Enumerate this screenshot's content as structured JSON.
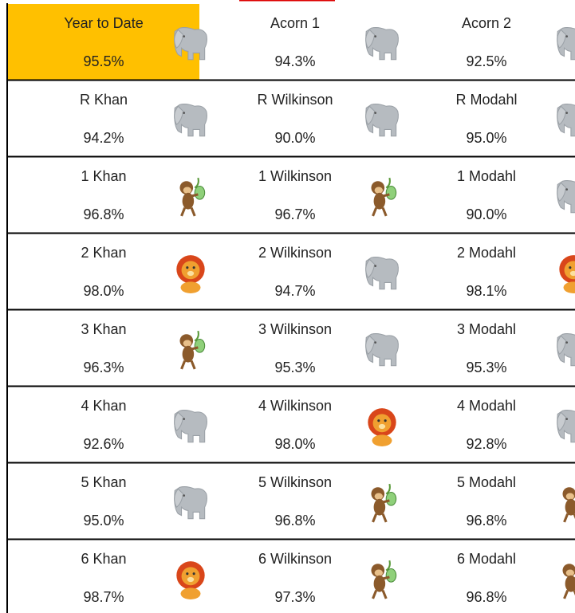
{
  "rows": [
    [
      {
        "name": "Year to Date",
        "value": "95.5%",
        "icon": "elephant",
        "highlight": true
      },
      {
        "name": "Acorn 1",
        "value": "94.3%",
        "icon": "elephant"
      },
      {
        "name": "Acorn 2",
        "value": "92.5%",
        "icon": "elephant"
      }
    ],
    [
      {
        "name": "R Khan",
        "value": "94.2%",
        "icon": "elephant"
      },
      {
        "name": "R Wilkinson",
        "value": "90.0%",
        "icon": "elephant"
      },
      {
        "name": "R Modahl",
        "value": "95.0%",
        "icon": "elephant"
      }
    ],
    [
      {
        "name": "1 Khan",
        "value": "96.8%",
        "icon": "monkey"
      },
      {
        "name": "1 Wilkinson",
        "value": "96.7%",
        "icon": "monkey"
      },
      {
        "name": "1 Modahl",
        "value": "90.0%",
        "icon": "elephant"
      }
    ],
    [
      {
        "name": "2 Khan",
        "value": "98.0%",
        "icon": "lion"
      },
      {
        "name": "2 Wilkinson",
        "value": "94.7%",
        "icon": "elephant"
      },
      {
        "name": "2 Modahl",
        "value": "98.1%",
        "icon": "lion"
      }
    ],
    [
      {
        "name": "3 Khan",
        "value": "96.3%",
        "icon": "monkey"
      },
      {
        "name": "3 Wilkinson",
        "value": "95.3%",
        "icon": "elephant"
      },
      {
        "name": "3 Modahl",
        "value": "95.3%",
        "icon": "elephant"
      }
    ],
    [
      {
        "name": "4 Khan",
        "value": "92.6%",
        "icon": "elephant"
      },
      {
        "name": "4 Wilkinson",
        "value": "98.0%",
        "icon": "lion"
      },
      {
        "name": "4 Modahl",
        "value": "92.8%",
        "icon": "elephant"
      }
    ],
    [
      {
        "name": "5 Khan",
        "value": "95.0%",
        "icon": "elephant"
      },
      {
        "name": "5 Wilkinson",
        "value": "96.8%",
        "icon": "monkey"
      },
      {
        "name": "5 Modahl",
        "value": "96.8%",
        "icon": "monkey"
      }
    ],
    [
      {
        "name": "6 Khan",
        "value": "98.7%",
        "icon": "lion"
      },
      {
        "name": "6 Wilkinson",
        "value": "97.3%",
        "icon": "monkey"
      },
      {
        "name": "6 Modahl",
        "value": "96.8%",
        "icon": "monkey"
      }
    ]
  ]
}
